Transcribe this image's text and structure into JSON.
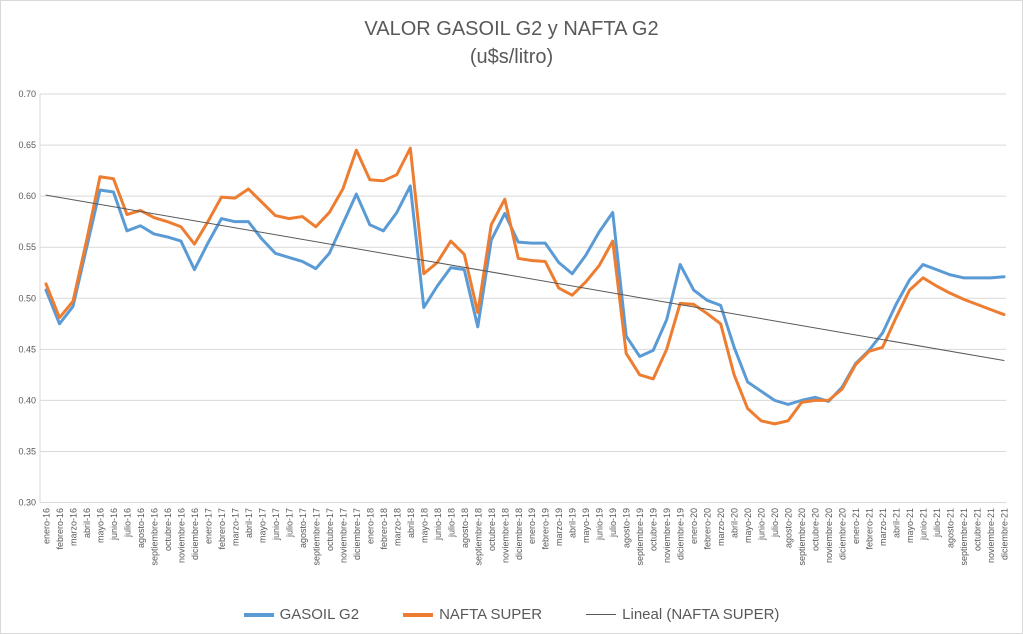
{
  "title": {
    "line1": "VALOR GASOIL G2 y NAFTA G2",
    "line2": "(u$s/litro)"
  },
  "chart_data": {
    "type": "line",
    "title": "VALOR GASOIL G2 y NAFTA G2 (u$s/litro)",
    "xlabel": "",
    "ylabel": "",
    "ylim": [
      0.3,
      0.7
    ],
    "ytick_step": 0.05,
    "ytick_labels": [
      "0.30",
      "0.35",
      "0.40",
      "0.45",
      "0.50",
      "0.55",
      "0.60",
      "0.65",
      "0.70"
    ],
    "grid": true,
    "grid_color": "#d9d9d9",
    "text_color": "#595959",
    "background_color": "#ffffff",
    "legend_position": "bottom",
    "categories": [
      "enero-16",
      "febrero-16",
      "marzo-16",
      "abril-16",
      "mayo-16",
      "junio-16",
      "julio-16",
      "agosto-16",
      "septiembre-16",
      "octubre-16",
      "noviembre-16",
      "diciembre-16",
      "enero-17",
      "febrero-17",
      "marzo-17",
      "abril-17",
      "mayo-17",
      "junio-17",
      "julio-17",
      "agosto-17",
      "septiembre-17",
      "octubre-17",
      "noviembre-17",
      "diciembre-17",
      "enero-18",
      "febrero-18",
      "marzo-18",
      "abril-18",
      "mayo-18",
      "junio-18",
      "julio-18",
      "agosto-18",
      "septiembre-18",
      "octubre-18",
      "noviembre-18",
      "diciembre-18",
      "enero-19",
      "febrero-19",
      "marzo-19",
      "abril-19",
      "mayo-19",
      "junio-19",
      "julio-19",
      "agosto-19",
      "septiembre-19",
      "octubre-19",
      "noviembre-19",
      "diciembre-19",
      "enero-20",
      "febrero-20",
      "marzo-20",
      "abril-20",
      "mayo-20",
      "junio-20",
      "julio-20",
      "agosto-20",
      "septiembre-20",
      "octubre-20",
      "noviembre-20",
      "diciembre-20",
      "enero-21",
      "febrero-21",
      "marzo-21",
      "abril-21",
      "mayo-21",
      "junio-21",
      "julio-21",
      "agosto-21",
      "septiembre-21",
      "octubre-21",
      "noviembre-21",
      "diciembre-21"
    ],
    "series": [
      {
        "name": "GASOIL G2",
        "color": "#5b9bd5",
        "width": 3,
        "trend": false,
        "data_name": "gasoil-g2-line",
        "values": [
          0.508,
          0.475,
          0.492,
          0.549,
          0.606,
          0.604,
          0.566,
          0.571,
          0.563,
          0.56,
          0.556,
          0.528,
          0.554,
          0.578,
          0.575,
          0.575,
          0.558,
          0.544,
          0.54,
          0.536,
          0.529,
          0.544,
          0.573,
          0.602,
          0.572,
          0.566,
          0.584,
          0.61,
          0.491,
          0.512,
          0.53,
          0.528,
          0.472,
          0.557,
          0.583,
          0.555,
          0.554,
          0.554,
          0.535,
          0.524,
          0.542,
          0.565,
          0.584,
          0.463,
          0.443,
          0.449,
          0.479,
          0.533,
          0.508,
          0.498,
          0.493,
          0.452,
          0.418,
          0.409,
          0.4,
          0.396,
          0.4,
          0.403,
          0.399,
          0.413,
          0.436,
          0.449,
          0.466,
          0.494,
          0.518,
          0.533,
          0.528,
          0.523,
          0.52,
          0.52,
          0.52,
          0.521
        ]
      },
      {
        "name": "NAFTA SUPER",
        "color": "#ed7d31",
        "width": 3,
        "trend": false,
        "data_name": "nafta-super-line",
        "values": [
          0.514,
          0.481,
          0.497,
          0.556,
          0.619,
          0.617,
          0.582,
          0.586,
          0.579,
          0.575,
          0.57,
          0.553,
          0.575,
          0.599,
          0.598,
          0.607,
          0.594,
          0.581,
          0.578,
          0.58,
          0.57,
          0.584,
          0.607,
          0.645,
          0.616,
          0.615,
          0.621,
          0.647,
          0.524,
          0.535,
          0.556,
          0.543,
          0.486,
          0.572,
          0.597,
          0.539,
          0.537,
          0.536,
          0.51,
          0.503,
          0.516,
          0.532,
          0.556,
          0.446,
          0.425,
          0.421,
          0.45,
          0.495,
          0.494,
          0.485,
          0.475,
          0.425,
          0.392,
          0.38,
          0.377,
          0.38,
          0.398,
          0.4,
          0.4,
          0.411,
          0.435,
          0.448,
          0.452,
          0.481,
          0.508,
          0.52,
          0.512,
          0.505,
          0.499,
          0.494,
          0.489,
          0.484
        ]
      },
      {
        "name": "Lineal (NAFTA SUPER)",
        "color": "#595959",
        "width": 1,
        "trend": true,
        "data_name": "trendline-nafta-super",
        "values": [
          0.601,
          0.439
        ]
      }
    ]
  }
}
